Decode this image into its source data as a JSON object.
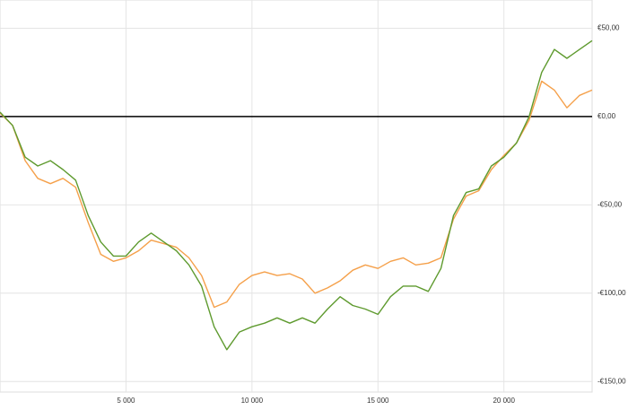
{
  "chart_data": {
    "type": "line",
    "x": [
      0,
      500,
      1000,
      1500,
      2000,
      2500,
      3000,
      3500,
      4000,
      4500,
      5000,
      5500,
      6000,
      6500,
      7000,
      7500,
      8000,
      8500,
      9000,
      9500,
      10000,
      10500,
      11000,
      11500,
      12000,
      12500,
      13000,
      13500,
      14000,
      14500,
      15000,
      15500,
      16000,
      16500,
      17000,
      17500,
      18000,
      18500,
      19000,
      19500,
      20000,
      20500,
      21000,
      21500,
      22000,
      22500,
      23000,
      23500
    ],
    "series": [
      {
        "color": "#f5a04a",
        "values": [
          2,
          -5,
          -25,
          -35,
          -38,
          -35,
          -40,
          -60,
          -78,
          -82,
          -80,
          -76,
          -70,
          -72,
          -74,
          -80,
          -90,
          -108,
          -105,
          -95,
          -90,
          -88,
          -90,
          -89,
          -92,
          -100,
          -97,
          -93,
          -87,
          -84,
          -86,
          -82,
          -80,
          -84,
          -83,
          -80,
          -58,
          -45,
          -42,
          -30,
          -22,
          -15,
          -2,
          20,
          15,
          5,
          12,
          15
        ]
      },
      {
        "color": "#5e9a2e",
        "values": [
          2.5,
          -5,
          -23,
          -28,
          -25,
          -30,
          -36,
          -56,
          -71,
          -79,
          -79,
          -71,
          -66,
          -71,
          -76,
          -84,
          -96,
          -119,
          -132,
          -122,
          -119,
          -117,
          -114,
          -117,
          -114,
          -117,
          -109,
          -102,
          -107,
          -109,
          -112,
          -102,
          -96,
          -96,
          -99,
          -86,
          -56,
          -43,
          -41,
          -28,
          -23,
          -15,
          0,
          25,
          38,
          33,
          38,
          43
        ]
      }
    ],
    "xlim": [
      0,
      23500
    ],
    "xticks": [
      {
        "value": 5000,
        "label": "5 000"
      },
      {
        "value": 10000,
        "label": "10 000"
      },
      {
        "value": 15000,
        "label": "15 000"
      },
      {
        "value": 20000,
        "label": "20 000"
      }
    ],
    "ylim": [
      -156,
      66
    ],
    "yticks": [
      {
        "value": 50,
        "label": "€50,00"
      },
      {
        "value": 0,
        "label": "€0,00"
      },
      {
        "value": -50,
        "label": "-€50,00"
      },
      {
        "value": -100,
        "label": "-€100,00"
      },
      {
        "value": -150,
        "label": "-€150,00"
      }
    ],
    "grid": true
  }
}
